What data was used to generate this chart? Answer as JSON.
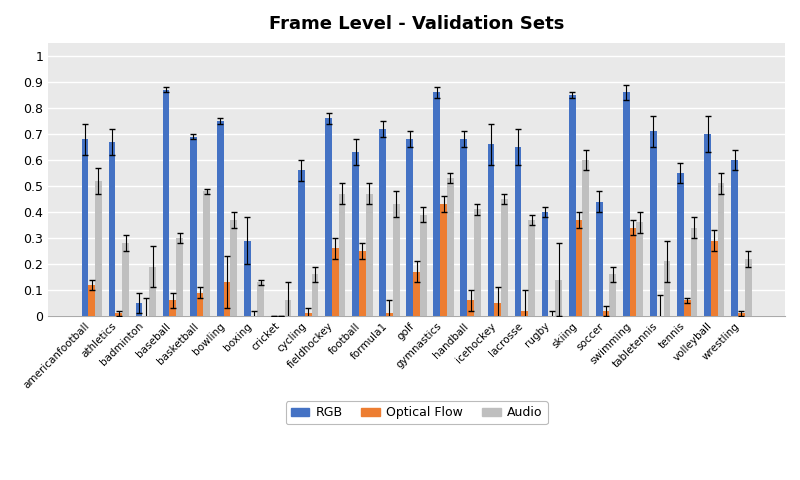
{
  "title": "Frame Level - Validation Sets",
  "categories": [
    "americanfootball",
    "athletics",
    "badminton",
    "baseball",
    "basketball",
    "bowling",
    "boxing",
    "cricket",
    "cycling",
    "fieldhockey",
    "football",
    "formula1",
    "golf",
    "gymnastics",
    "handball",
    "icehockey",
    "lacrosse",
    "rugby",
    "skiing",
    "soccer",
    "swimming",
    "tabletennis",
    "tennis",
    "volleyball",
    "wrestling"
  ],
  "rgb": [
    0.68,
    0.67,
    0.05,
    0.87,
    0.69,
    0.75,
    0.29,
    0.0,
    0.56,
    0.76,
    0.63,
    0.72,
    0.68,
    0.86,
    0.68,
    0.66,
    0.65,
    0.4,
    0.85,
    0.44,
    0.86,
    0.71,
    0.55,
    0.7,
    0.6
  ],
  "optical_flow": [
    0.12,
    0.01,
    0.0,
    0.06,
    0.09,
    0.13,
    0.0,
    0.0,
    0.01,
    0.26,
    0.25,
    0.01,
    0.17,
    0.43,
    0.06,
    0.05,
    0.02,
    0.0,
    0.37,
    0.02,
    0.34,
    0.0,
    0.06,
    0.29,
    0.01
  ],
  "audio": [
    0.52,
    0.28,
    0.19,
    0.3,
    0.48,
    0.37,
    0.13,
    0.06,
    0.16,
    0.47,
    0.47,
    0.43,
    0.39,
    0.53,
    0.41,
    0.45,
    0.37,
    0.14,
    0.6,
    0.16,
    0.36,
    0.21,
    0.34,
    0.51,
    0.22
  ],
  "rgb_err": [
    0.06,
    0.05,
    0.04,
    0.01,
    0.01,
    0.01,
    0.09,
    0.0,
    0.04,
    0.02,
    0.05,
    0.03,
    0.03,
    0.02,
    0.03,
    0.08,
    0.07,
    0.02,
    0.01,
    0.04,
    0.03,
    0.06,
    0.04,
    0.07,
    0.04
  ],
  "optical_flow_err": [
    0.02,
    0.01,
    0.07,
    0.03,
    0.02,
    0.1,
    0.02,
    0.0,
    0.02,
    0.04,
    0.03,
    0.05,
    0.04,
    0.03,
    0.04,
    0.06,
    0.08,
    0.02,
    0.03,
    0.02,
    0.03,
    0.08,
    0.01,
    0.04,
    0.01
  ],
  "audio_err": [
    0.05,
    0.03,
    0.08,
    0.02,
    0.01,
    0.03,
    0.01,
    0.07,
    0.03,
    0.04,
    0.04,
    0.05,
    0.03,
    0.02,
    0.02,
    0.02,
    0.02,
    0.14,
    0.04,
    0.03,
    0.04,
    0.08,
    0.04,
    0.04,
    0.03
  ],
  "rgb_color": "#4472C4",
  "optical_flow_color": "#ED7D31",
  "audio_color": "#BFBFBF",
  "plot_bg_color": "#E9E9E9",
  "fig_bg_color": "#FFFFFF",
  "grid_color": "#FFFFFF",
  "ylim": [
    0,
    1.05
  ],
  "yticks": [
    0,
    0.1,
    0.2,
    0.3,
    0.4,
    0.5,
    0.6,
    0.7,
    0.8,
    0.9,
    1
  ],
  "ytick_labels": [
    "0",
    "0.1",
    "0.2",
    "0.3",
    "0.4",
    "0.5",
    "0.6",
    "0.7",
    "0.8",
    "0.9",
    "1"
  ],
  "bar_width": 0.25,
  "figsize": [
    8.0,
    4.8
  ],
  "dpi": 100
}
